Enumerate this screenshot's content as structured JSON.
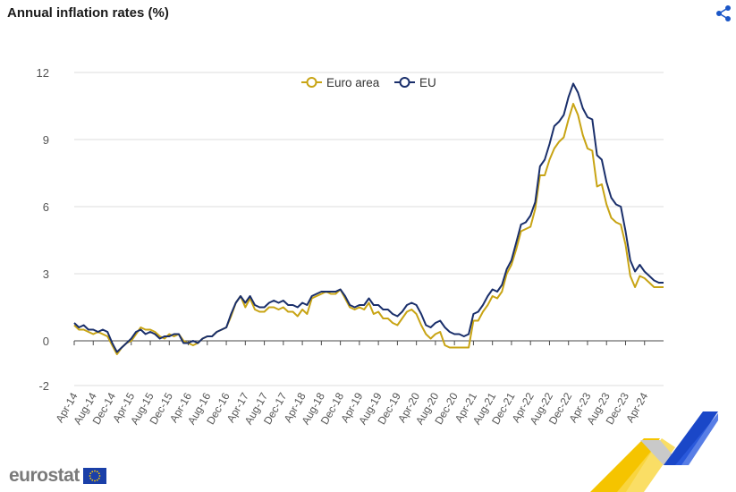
{
  "title": "Annual inflation rates (%)",
  "icons": {
    "share": "share-icon"
  },
  "logo": {
    "text": "eurostat",
    "flag": "eu-flag-icon"
  },
  "colors": {
    "euro_area": "#c8a414",
    "eu": "#1a2f6b",
    "grid": "#dcdcdc",
    "axis_text": "#555555"
  },
  "chart_data": {
    "type": "line",
    "title": "Annual inflation rates (%)",
    "xlabel": "",
    "ylabel": "",
    "ylim": [
      -2,
      12
    ],
    "yticks": [
      -2,
      0,
      3,
      6,
      9,
      12
    ],
    "grid": true,
    "legend_position": "top-center",
    "x_tick_labels": [
      "Apr-14",
      "Aug-14",
      "Dec-14",
      "Apr-15",
      "Aug-15",
      "Dec-15",
      "Apr-16",
      "Aug-16",
      "Dec-16",
      "Apr-17",
      "Aug-17",
      "Dec-17",
      "Apr-18",
      "Aug-18",
      "Dec-18",
      "Apr-19",
      "Aug-19",
      "Dec-19",
      "Apr-20",
      "Aug-20",
      "Dec-20",
      "Apr-21",
      "Aug-21",
      "Dec-21",
      "Apr-22",
      "Aug-22",
      "Dec-22",
      "Apr-23",
      "Aug-23",
      "Dec-23",
      "Apr-24"
    ],
    "x_start": "Apr-14",
    "x_end": "Apr-24",
    "series": [
      {
        "name": "Euro area",
        "values": [
          0.7,
          0.5,
          0.5,
          0.4,
          0.3,
          0.4,
          0.3,
          0.2,
          -0.2,
          -0.6,
          -0.3,
          -0.1,
          0.0,
          0.3,
          0.6,
          0.5,
          0.5,
          0.4,
          0.2,
          0.1,
          0.3,
          0.2,
          0.3,
          0.0,
          -0.1,
          -0.2,
          -0.1,
          0.1,
          0.2,
          0.2,
          0.4,
          0.5,
          0.6,
          1.1,
          1.7,
          2.0,
          1.5,
          1.9,
          1.4,
          1.3,
          1.3,
          1.5,
          1.5,
          1.4,
          1.5,
          1.3,
          1.3,
          1.1,
          1.4,
          1.2,
          1.9,
          2.0,
          2.1,
          2.2,
          2.1,
          2.1,
          2.3,
          1.9,
          1.5,
          1.4,
          1.5,
          1.4,
          1.7,
          1.2,
          1.3,
          1.0,
          1.0,
          0.8,
          0.7,
          1.0,
          1.3,
          1.4,
          1.2,
          0.7,
          0.3,
          0.1,
          0.3,
          0.4,
          -0.2,
          -0.3,
          -0.3,
          -0.3,
          -0.3,
          -0.3,
          0.9,
          0.9,
          1.3,
          1.6,
          2.0,
          1.9,
          2.2,
          3.0,
          3.4,
          4.1,
          4.9,
          5.0,
          5.1,
          5.9,
          7.4,
          7.4,
          8.1,
          8.6,
          8.9,
          9.1,
          9.9,
          10.6,
          10.1,
          9.2,
          8.6,
          8.5,
          6.9,
          7.0,
          6.1,
          5.5,
          5.3,
          5.2,
          4.3,
          2.9,
          2.4,
          2.9,
          2.8,
          2.6,
          2.4,
          2.4,
          2.4
        ]
      },
      {
        "name": "EU",
        "values": [
          0.8,
          0.6,
          0.7,
          0.5,
          0.5,
          0.4,
          0.5,
          0.4,
          -0.1,
          -0.5,
          -0.3,
          -0.1,
          0.1,
          0.4,
          0.5,
          0.3,
          0.4,
          0.3,
          0.1,
          0.2,
          0.2,
          0.3,
          0.3,
          -0.1,
          -0.1,
          0.0,
          -0.1,
          0.1,
          0.2,
          0.2,
          0.4,
          0.5,
          0.6,
          1.2,
          1.7,
          2.0,
          1.7,
          2.0,
          1.6,
          1.5,
          1.5,
          1.7,
          1.8,
          1.7,
          1.8,
          1.6,
          1.6,
          1.5,
          1.7,
          1.6,
          2.0,
          2.1,
          2.2,
          2.2,
          2.2,
          2.2,
          2.3,
          2.0,
          1.6,
          1.5,
          1.6,
          1.6,
          1.9,
          1.6,
          1.6,
          1.4,
          1.4,
          1.2,
          1.1,
          1.3,
          1.6,
          1.7,
          1.6,
          1.2,
          0.7,
          0.6,
          0.8,
          0.9,
          0.6,
          0.4,
          0.3,
          0.3,
          0.2,
          0.3,
          1.2,
          1.3,
          1.6,
          2.0,
          2.3,
          2.2,
          2.5,
          3.2,
          3.6,
          4.4,
          5.2,
          5.3,
          5.6,
          6.2,
          7.8,
          8.1,
          8.8,
          9.6,
          9.8,
          10.1,
          10.9,
          11.5,
          11.1,
          10.4,
          10.0,
          9.9,
          8.3,
          8.1,
          7.1,
          6.4,
          6.1,
          6.0,
          4.9,
          3.6,
          3.1,
          3.4,
          3.1,
          2.9,
          2.7,
          2.6,
          2.6
        ]
      }
    ]
  }
}
